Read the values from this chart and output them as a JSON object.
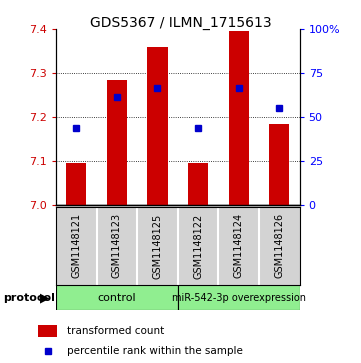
{
  "title": "GDS5367 / ILMN_1715613",
  "samples": [
    "GSM1148121",
    "GSM1148123",
    "GSM1148125",
    "GSM1148122",
    "GSM1148124",
    "GSM1148126"
  ],
  "bar_tops": [
    7.095,
    7.285,
    7.36,
    7.095,
    7.395,
    7.185
  ],
  "bar_base": 7.0,
  "percentile_values": [
    7.175,
    7.245,
    7.265,
    7.175,
    7.265,
    7.22
  ],
  "ylim": [
    7.0,
    7.4
  ],
  "y2lim": [
    0,
    100
  ],
  "yticks": [
    7.0,
    7.1,
    7.2,
    7.3,
    7.4
  ],
  "y2ticks": [
    0,
    25,
    50,
    75,
    100
  ],
  "bar_color": "#cc0000",
  "percentile_color": "#0000cc",
  "bar_width": 0.5,
  "legend_bar_label": "transformed count",
  "legend_pct_label": "percentile rank within the sample",
  "protocol_label": "protocol",
  "ctrl_label": "control",
  "mir_label": "miR-542-3p overexpression",
  "group_color": "#90ee90",
  "label_bg": "#d3d3d3",
  "title_fontsize": 10
}
